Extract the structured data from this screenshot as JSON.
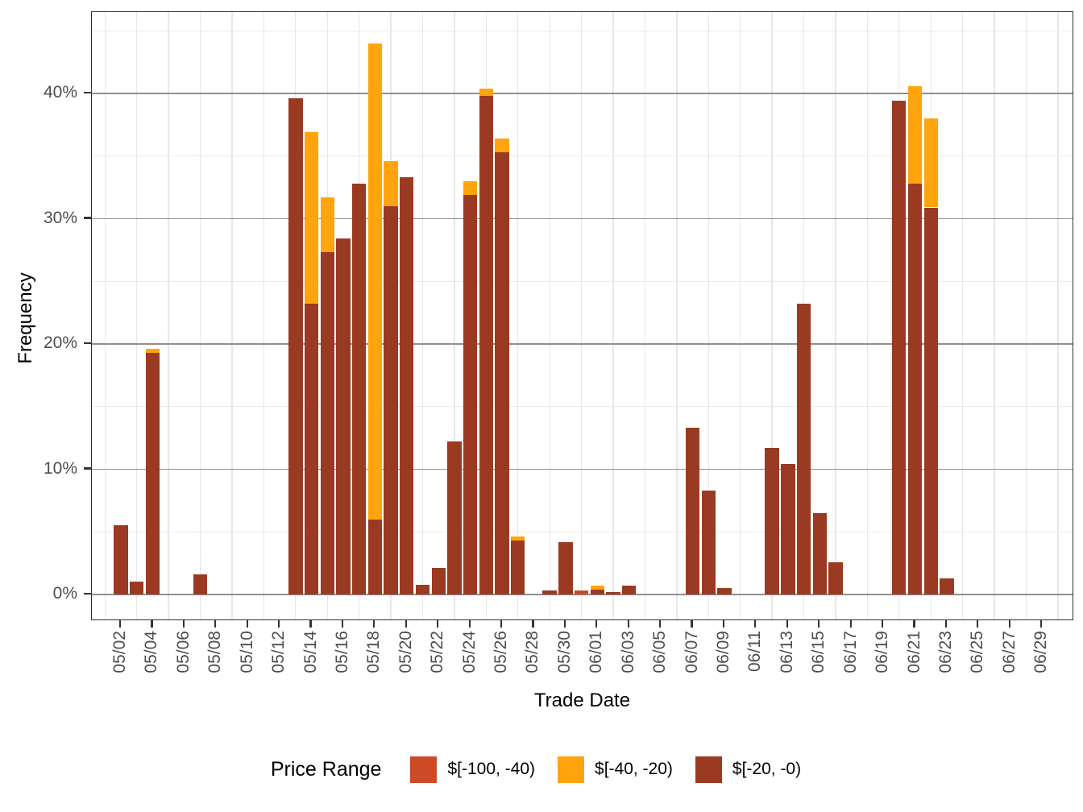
{
  "axes": {
    "y_title": "Frequency",
    "x_title": "Trade Date",
    "y_ticks": [
      "0%",
      "10%",
      "20%",
      "30%",
      "40%"
    ],
    "y_tick_values": [
      0,
      10,
      20,
      30,
      40
    ],
    "y_minor_values": [
      5,
      15,
      25,
      35,
      45
    ],
    "x_ticks": [
      "05/02",
      "05/04",
      "05/06",
      "05/08",
      "05/10",
      "05/12",
      "05/14",
      "05/16",
      "05/18",
      "05/20",
      "05/22",
      "05/24",
      "05/26",
      "05/28",
      "05/30",
      "06/01",
      "06/03",
      "06/05",
      "06/07",
      "06/09",
      "06/11",
      "06/13",
      "06/15",
      "06/17",
      "06/19",
      "06/21",
      "06/23",
      "06/25",
      "06/27",
      "06/29"
    ],
    "x_tick_day_index": [
      1,
      3,
      5,
      7,
      9,
      11,
      13,
      15,
      17,
      19,
      21,
      23,
      25,
      27,
      29,
      31,
      33,
      35,
      37,
      39,
      41,
      43,
      45,
      47,
      49,
      51,
      53,
      55,
      57,
      59
    ]
  },
  "legend": {
    "title": "Price Range",
    "items": [
      {
        "label": "$[-100, -40)",
        "color": "#CC4A26"
      },
      {
        "label": "$[-40, -20)",
        "color": "#FFA40D"
      },
      {
        "label": "$[-20, -0)",
        "color": "#9A3A22"
      }
    ]
  },
  "style": {
    "background": "#FFFFFF",
    "panel_border": "#2F2F2F",
    "hgrid_major": "#8F8F8F",
    "hgrid_minor": "#EBEBEB",
    "vgrid_minor": "#E7E7E7",
    "tick_label_color": "#4D4D4D",
    "axis_title_color": "#000000"
  },
  "chart_data": {
    "type": "bar",
    "stacked": true,
    "title": "",
    "xlabel": "Trade Date",
    "ylabel": "Frequency",
    "y_unit": "percent",
    "ylim": [
      0,
      46.5
    ],
    "x_domain": [
      "05/01",
      "06/30"
    ],
    "grid": "on",
    "legend_position": "bottom",
    "categories": [
      "05/02",
      "05/03",
      "05/04",
      "05/07",
      "05/13",
      "05/14",
      "05/15",
      "05/16",
      "05/17",
      "05/18",
      "05/19",
      "05/20",
      "05/21",
      "05/22",
      "05/23",
      "05/24",
      "05/25",
      "05/26",
      "05/27",
      "05/29",
      "05/30",
      "05/31",
      "06/01",
      "06/02",
      "06/03",
      "06/07",
      "06/08",
      "06/09",
      "06/12",
      "06/13",
      "06/14",
      "06/15",
      "06/16",
      "06/20",
      "06/21",
      "06/22",
      "06/23"
    ],
    "day_index": [
      1,
      2,
      3,
      6,
      12,
      13,
      14,
      15,
      16,
      17,
      18,
      19,
      20,
      21,
      22,
      23,
      24,
      25,
      26,
      28,
      29,
      30,
      31,
      32,
      33,
      37,
      38,
      39,
      42,
      43,
      44,
      45,
      46,
      50,
      51,
      52,
      53
    ],
    "series": [
      {
        "name": "$[-100, -40)",
        "color": "#CC4A26",
        "values": [
          0,
          0,
          0,
          0,
          0,
          0,
          0,
          0,
          0,
          0,
          0,
          0,
          0,
          0,
          0,
          0,
          0,
          0,
          0,
          0,
          0,
          0.3,
          0,
          0,
          0,
          0,
          0,
          0,
          0,
          0,
          0,
          0,
          0,
          0,
          0,
          0,
          0
        ]
      },
      {
        "name": "$[-40, -20)",
        "color": "#FFA40D",
        "values": [
          0,
          0,
          0.3,
          0,
          0,
          13.7,
          4.4,
          0,
          0,
          38.0,
          3.6,
          0,
          0,
          0,
          0,
          1.1,
          0.6,
          1.1,
          0.3,
          0,
          0,
          0,
          0.3,
          0,
          0,
          0,
          0,
          0,
          0,
          0,
          0,
          0,
          0,
          0,
          7.8,
          7.1,
          0
        ]
      },
      {
        "name": "$[-20, -0)",
        "color": "#9A3A22",
        "values": [
          5.5,
          1.0,
          19.3,
          1.6,
          39.6,
          23.2,
          27.3,
          28.4,
          32.8,
          6.0,
          31.0,
          33.3,
          0.8,
          2.1,
          12.2,
          31.9,
          39.8,
          35.3,
          4.3,
          0.3,
          4.2,
          0,
          0.4,
          0.2,
          0.7,
          13.3,
          8.3,
          0.5,
          11.7,
          10.4,
          23.2,
          6.5,
          2.6,
          39.4,
          32.8,
          30.9,
          1.3
        ]
      }
    ]
  }
}
